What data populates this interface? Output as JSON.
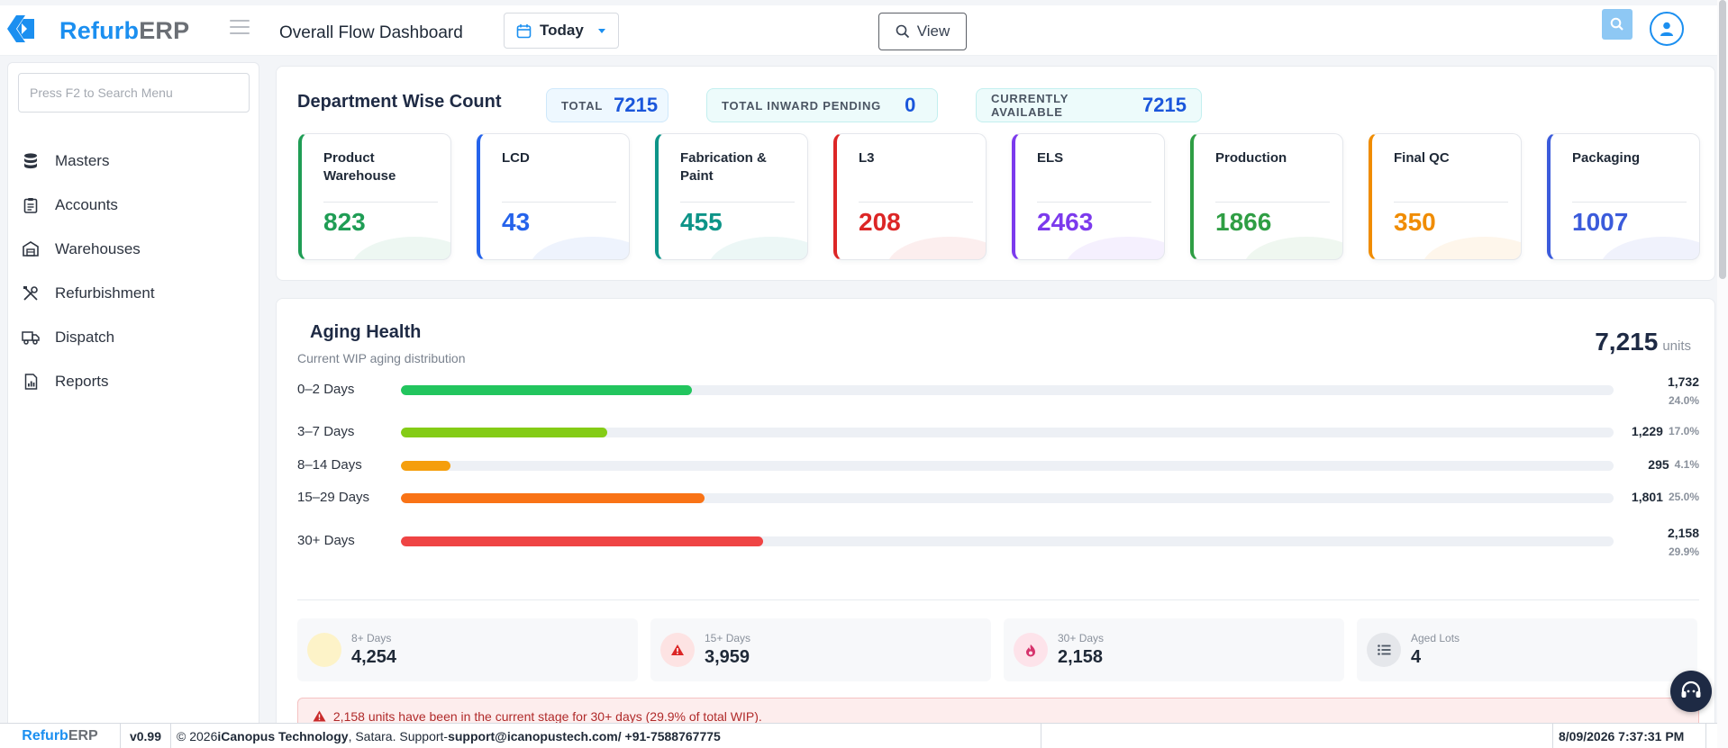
{
  "app": {
    "brand_part1": "Refurb",
    "brand_part2": "ERP",
    "page_title": "Overall Flow Dashboard",
    "accent": "#1b8ff0"
  },
  "toolbar": {
    "date_label": "Today",
    "view_label": "View"
  },
  "sidebar": {
    "search_placeholder": "Press F2 to Search Menu",
    "items": [
      {
        "label": "Masters",
        "icon": "database-icon"
      },
      {
        "label": "Accounts",
        "icon": "clipboard-icon"
      },
      {
        "label": "Warehouses",
        "icon": "warehouse-icon"
      },
      {
        "label": "Refurbishment",
        "icon": "tools-icon"
      },
      {
        "label": "Dispatch",
        "icon": "truck-icon"
      },
      {
        "label": "Reports",
        "icon": "report-icon"
      }
    ]
  },
  "department": {
    "title": "Department Wise Count",
    "total_label": "TOTAL",
    "total_value": "7215",
    "inward_label": "TOTAL INWARD PENDING",
    "inward_value": "0",
    "available_label": "CURRENTLY AVAILABLE",
    "available_value": "7215",
    "cards": [
      {
        "name": "Product Warehouse",
        "value": "823",
        "color": "#1f9d55"
      },
      {
        "name": "LCD",
        "value": "43",
        "color": "#2563eb"
      },
      {
        "name": "Fabrication & Paint",
        "value": "455",
        "color": "#0d9488"
      },
      {
        "name": "L3",
        "value": "208",
        "color": "#dc2626"
      },
      {
        "name": "ELS",
        "value": "2463",
        "color": "#7c3aed"
      },
      {
        "name": "Production",
        "value": "1866",
        "color": "#2f9e44"
      },
      {
        "name": "Final QC",
        "value": "350",
        "color": "#f08c00"
      },
      {
        "name": "Packaging",
        "value": "1007",
        "color": "#3b5bdb"
      }
    ]
  },
  "aging": {
    "title": "Aging Health",
    "subtitle": "Current WIP aging distribution",
    "total_value": "7,215",
    "total_unit": "units",
    "rows": [
      {
        "label": "0–2 Days",
        "count": "1,732",
        "percent": "24.0%",
        "fraction": 0.24,
        "color": "#22c55e"
      },
      {
        "label": "3–7 Days",
        "count": "1,229",
        "percent": "17.0%",
        "fraction": 0.17,
        "color": "#84cc16"
      },
      {
        "label": "8–14 Days",
        "count": "295",
        "percent": "4.1%",
        "fraction": 0.041,
        "color": "#f59e0b"
      },
      {
        "label": "15–29 Days",
        "count": "1,801",
        "percent": "25.0%",
        "fraction": 0.25,
        "color": "#f97316"
      },
      {
        "label": "30+ Days",
        "count": "2,158",
        "percent": "29.9%",
        "fraction": 0.299,
        "color": "#ef4444"
      }
    ],
    "stats": [
      {
        "label": "8+ Days",
        "value": "4,254",
        "icon": "dot-icon"
      },
      {
        "label": "15+ Days",
        "value": "3,959",
        "icon": "warning-icon"
      },
      {
        "label": "30+ Days",
        "value": "2,158",
        "icon": "fire-icon"
      },
      {
        "label": "Aged Lots",
        "value": "4",
        "icon": "list-icon"
      }
    ],
    "alert": "2,158 units have been in the current stage for 30+ days (29.9% of total WIP)."
  },
  "footer": {
    "brand_part1": "Refurb",
    "brand_part2": "ERP",
    "version": "v0.99",
    "copyright_prefix": "© 2026 ",
    "company": "iCanopus Technology",
    "location_support": ", Satara. Support-",
    "email": "support@icanopustech.com",
    "phone": " / +91-7588767775",
    "datetime": "8/09/2026 7:37:31 PM"
  }
}
